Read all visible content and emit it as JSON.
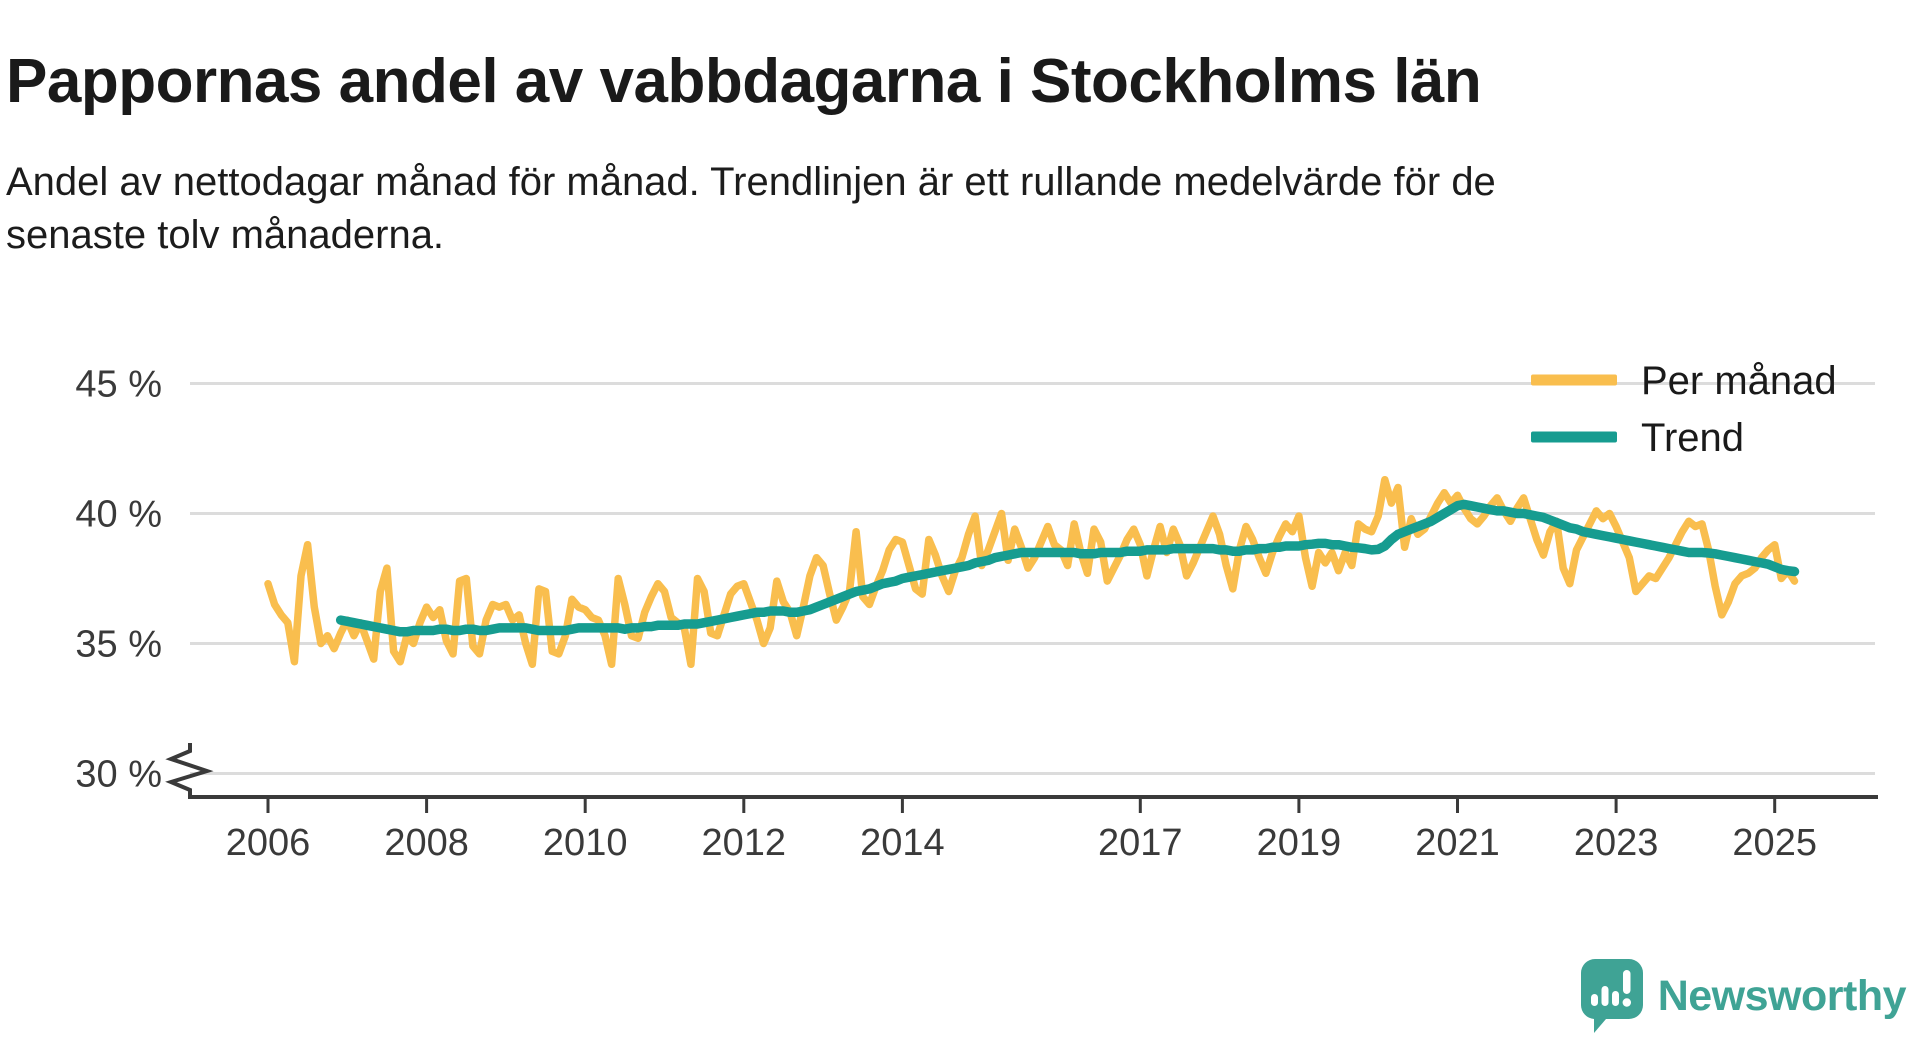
{
  "header": {
    "title": "Pappornas andel av vabbdagarna i Stockholms län",
    "subtitle": "Andel av nettodagar månad för månad. Trendlinjen är ett rullande medelvärde för de senaste tolv månaderna."
  },
  "branding": {
    "logo_text": "Newsworthy",
    "logo_icon": "bar-chart-speech-bubble-icon",
    "logo_color": "#3fa395"
  },
  "chart_data": {
    "type": "line",
    "title": "Pappornas andel av vabbdagarna i Stockholms län",
    "xlabel": "",
    "ylabel": "",
    "unit": "%",
    "grid": "horizontal",
    "x_axis": {
      "ticks": [
        2006,
        2008,
        2010,
        2012,
        2014,
        2017,
        2019,
        2021,
        2023,
        2025
      ],
      "range": [
        2005.0,
        2025.8
      ]
    },
    "y_axis": {
      "ticks": [
        45,
        40,
        35,
        30
      ],
      "tick_labels": [
        "45 %",
        "40 %",
        "35 %",
        "30 %"
      ],
      "range_shown": [
        30,
        45
      ],
      "axis_break_below": 30
    },
    "legend": {
      "position": "top-right",
      "entries": [
        {
          "label": "Per månad",
          "color": "#f9be4e"
        },
        {
          "label": "Trend",
          "color": "#169c90"
        }
      ]
    },
    "colors": {
      "monthly_line": "#f9be4e",
      "trend_line": "#169c90",
      "gridline": "#dcdcdc",
      "axis": "#3a3a3a",
      "text": "#3a3a3a"
    },
    "series": [
      {
        "name": "Per månad",
        "color": "#f9be4e",
        "stroke_width": 7.5,
        "start": {
          "year": 2006,
          "month": 1
        },
        "frequency": "monthly",
        "values": [
          37.3,
          36.5,
          36.1,
          35.8,
          34.3,
          37.6,
          38.8,
          36.4,
          35.0,
          35.3,
          34.8,
          35.4,
          35.9,
          35.3,
          35.8,
          35.1,
          34.4,
          37.0,
          37.9,
          34.7,
          34.3,
          35.3,
          35.0,
          35.8,
          36.4,
          36.0,
          36.3,
          35.1,
          34.6,
          37.4,
          37.5,
          34.9,
          34.6,
          35.9,
          36.5,
          36.4,
          36.5,
          35.9,
          36.1,
          35.0,
          34.2,
          37.1,
          37.0,
          34.7,
          34.6,
          35.3,
          36.7,
          36.4,
          36.3,
          36.0,
          35.9,
          35.3,
          34.2,
          37.5,
          36.5,
          35.3,
          35.2,
          36.2,
          36.8,
          37.3,
          37.0,
          36.0,
          35.8,
          35.6,
          34.2,
          37.5,
          37.0,
          35.4,
          35.3,
          36.1,
          36.9,
          37.2,
          37.3,
          36.6,
          35.9,
          35.0,
          35.6,
          37.4,
          36.6,
          36.2,
          35.3,
          36.4,
          37.6,
          38.3,
          38.0,
          36.9,
          35.9,
          36.4,
          37.0,
          39.3,
          36.8,
          36.5,
          37.2,
          37.8,
          38.6,
          39.0,
          38.9,
          38.0,
          37.1,
          36.9,
          39.0,
          38.4,
          37.6,
          37.0,
          37.8,
          38.3,
          39.2,
          39.9,
          38.0,
          38.6,
          39.3,
          40.0,
          38.2,
          39.4,
          38.7,
          37.9,
          38.3,
          38.9,
          39.5,
          38.8,
          38.6,
          38.0,
          39.6,
          38.5,
          37.7,
          39.4,
          38.9,
          37.4,
          37.9,
          38.4,
          39.0,
          39.4,
          38.8,
          37.6,
          38.6,
          39.5,
          38.5,
          39.4,
          38.8,
          37.6,
          38.1,
          38.7,
          39.3,
          39.9,
          39.2,
          38.0,
          37.1,
          38.6,
          39.5,
          39.0,
          38.3,
          37.7,
          38.5,
          39.1,
          39.6,
          39.3,
          39.9,
          38.3,
          37.2,
          38.5,
          38.1,
          38.5,
          37.8,
          38.5,
          38.0,
          39.6,
          39.4,
          39.3,
          39.9,
          41.3,
          40.4,
          41.0,
          38.7,
          39.8,
          39.2,
          39.4,
          39.9,
          40.4,
          40.8,
          40.4,
          40.7,
          40.2,
          39.8,
          39.6,
          39.9,
          40.3,
          40.6,
          40.1,
          39.7,
          40.2,
          40.6,
          39.8,
          39.0,
          38.4,
          39.3,
          39.7,
          37.9,
          37.3,
          38.6,
          39.1,
          39.6,
          40.1,
          39.8,
          40.0,
          39.5,
          38.9,
          38.3,
          37.0,
          37.3,
          37.6,
          37.5,
          37.9,
          38.3,
          38.8,
          39.3,
          39.7,
          39.5,
          39.6,
          38.6,
          37.2,
          36.1,
          36.6,
          37.3,
          37.6,
          37.7,
          37.9,
          38.3,
          38.6,
          38.8,
          37.5,
          37.8,
          37.4
        ]
      },
      {
        "name": "Trend",
        "color": "#169c90",
        "stroke_width": 9.5,
        "start": {
          "year": 2006,
          "month": 12
        },
        "frequency": "monthly",
        "values": [
          35.9,
          35.85,
          35.8,
          35.75,
          35.7,
          35.65,
          35.6,
          35.55,
          35.5,
          35.45,
          35.45,
          35.5,
          35.5,
          35.5,
          35.5,
          35.55,
          35.55,
          35.5,
          35.5,
          35.55,
          35.55,
          35.5,
          35.5,
          35.55,
          35.6,
          35.6,
          35.6,
          35.6,
          35.6,
          35.55,
          35.5,
          35.5,
          35.5,
          35.5,
          35.5,
          35.55,
          35.6,
          35.6,
          35.6,
          35.6,
          35.6,
          35.6,
          35.6,
          35.55,
          35.6,
          35.6,
          35.65,
          35.65,
          35.7,
          35.7,
          35.7,
          35.7,
          35.75,
          35.75,
          35.75,
          35.8,
          35.85,
          35.9,
          35.95,
          36.0,
          36.05,
          36.1,
          36.15,
          36.2,
          36.2,
          36.25,
          36.25,
          36.25,
          36.2,
          36.2,
          36.25,
          36.3,
          36.4,
          36.5,
          36.6,
          36.7,
          36.8,
          36.9,
          37.0,
          37.05,
          37.1,
          37.2,
          37.3,
          37.35,
          37.4,
          37.5,
          37.55,
          37.6,
          37.65,
          37.7,
          37.75,
          37.8,
          37.85,
          37.9,
          37.95,
          38.0,
          38.1,
          38.15,
          38.2,
          38.3,
          38.35,
          38.4,
          38.45,
          38.5,
          38.5,
          38.5,
          38.5,
          38.5,
          38.5,
          38.5,
          38.5,
          38.5,
          38.45,
          38.45,
          38.45,
          38.5,
          38.5,
          38.5,
          38.5,
          38.55,
          38.55,
          38.55,
          38.6,
          38.6,
          38.6,
          38.6,
          38.65,
          38.65,
          38.65,
          38.65,
          38.65,
          38.65,
          38.65,
          38.6,
          38.6,
          38.55,
          38.55,
          38.6,
          38.6,
          38.65,
          38.65,
          38.7,
          38.7,
          38.75,
          38.75,
          38.75,
          38.8,
          38.82,
          38.85,
          38.85,
          38.8,
          38.8,
          38.75,
          38.7,
          38.68,
          38.65,
          38.6,
          38.62,
          38.75,
          39.0,
          39.2,
          39.3,
          39.4,
          39.5,
          39.6,
          39.7,
          39.85,
          40.0,
          40.15,
          40.3,
          40.35,
          40.3,
          40.25,
          40.2,
          40.15,
          40.1,
          40.1,
          40.05,
          40.0,
          40.0,
          39.95,
          39.9,
          39.85,
          39.75,
          39.65,
          39.55,
          39.45,
          39.4,
          39.3,
          39.25,
          39.2,
          39.15,
          39.1,
          39.05,
          39.0,
          38.95,
          38.9,
          38.85,
          38.8,
          38.75,
          38.7,
          38.65,
          38.6,
          38.55,
          38.5,
          38.5,
          38.5,
          38.48,
          38.45,
          38.4,
          38.35,
          38.3,
          38.25,
          38.2,
          38.15,
          38.1,
          38.05,
          37.95,
          37.85,
          37.8,
          37.77
        ]
      }
    ]
  }
}
